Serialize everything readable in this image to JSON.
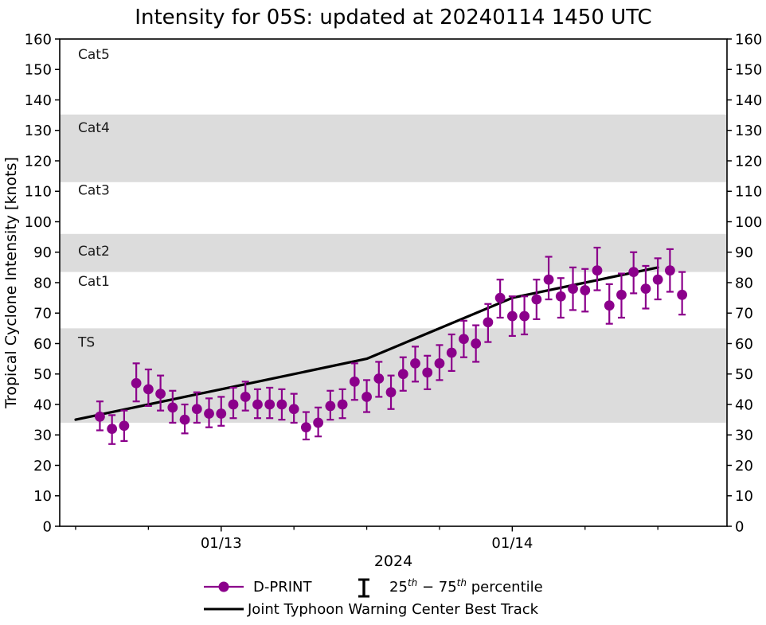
{
  "colors": {
    "dprint": "#8B008B",
    "best_track": "#000000",
    "band": "#DCDCDC",
    "text": "#000000",
    "background": "#FFFFFF"
  },
  "legend": {
    "dprint": "D-PRINT",
    "pct_25": "25",
    "pct_th1": "th",
    "pct_dash": " − 75",
    "pct_th2": "th",
    "pct_rest": " percentile",
    "best_track": "Joint Typhoon Warning Center Best Track"
  },
  "chart_data": {
    "type": "line",
    "title": "Intensity for 05S: updated at 20240114 1450 UTC",
    "xlabel": "2024",
    "ylabel": "Tropical Cyclone Intensity [knots]",
    "ylim": [
      0,
      160
    ],
    "grid": false,
    "legend_position": "below",
    "y_ticks": [
      0,
      10,
      20,
      30,
      40,
      50,
      60,
      70,
      80,
      90,
      100,
      110,
      120,
      130,
      140,
      150,
      160
    ],
    "x_axis": {
      "unit": "hours since 2024-01-12 12:00 UTC",
      "range": [
        -1.31,
        53.7
      ],
      "major_ticks": [
        {
          "t": 12,
          "label": "01/13"
        },
        {
          "t": 36,
          "label": "01/14"
        }
      ],
      "minor_ticks": [
        0,
        6,
        18,
        24,
        30,
        42,
        48
      ]
    },
    "bands": [
      {
        "label": "TS",
        "lo": 34,
        "hi": 65
      },
      {
        "label": "Cat2",
        "lo": 83.5,
        "hi": 96
      },
      {
        "label": "Cat4",
        "lo": 113,
        "hi": 135.2
      }
    ],
    "category_labels": [
      {
        "label": "Cat5",
        "v": 155
      },
      {
        "label": "Cat4",
        "v": 131
      },
      {
        "label": "Cat3",
        "v": 110.5
      },
      {
        "label": "Cat2",
        "v": 90.5
      },
      {
        "label": "Cat1",
        "v": 80.5
      },
      {
        "label": "TS",
        "v": 60.5
      }
    ],
    "series": [
      {
        "name": "D-PRINT",
        "type": "scatter_errorbar",
        "color": "#8B008B",
        "errorbar_meaning": "25th-75th percentile",
        "points_t_v_lo_hi": [
          [
            2,
            36,
            31.5,
            41
          ],
          [
            3,
            32,
            27,
            36.5
          ],
          [
            4,
            33,
            28,
            38
          ],
          [
            5,
            47,
            41,
            53.5
          ],
          [
            6,
            45,
            39.5,
            51.5
          ],
          [
            7,
            43.5,
            38,
            49.5
          ],
          [
            8,
            39,
            34,
            44.5
          ],
          [
            9,
            35,
            30.5,
            40
          ],
          [
            10,
            38.5,
            34,
            44
          ],
          [
            11,
            37,
            32.5,
            42
          ],
          [
            12,
            37,
            33,
            42.5
          ],
          [
            13,
            40,
            35.5,
            45.5
          ],
          [
            14,
            42.5,
            38,
            47.5
          ],
          [
            15,
            40,
            35.5,
            45
          ],
          [
            16,
            40,
            35.5,
            45.5
          ],
          [
            17,
            40,
            35,
            45
          ],
          [
            18,
            38.5,
            34,
            43.5
          ],
          [
            19,
            32.5,
            28.5,
            37.5
          ],
          [
            20,
            34,
            29.5,
            39
          ],
          [
            21,
            39.5,
            35,
            44.5
          ],
          [
            22,
            40,
            35.5,
            45
          ],
          [
            23,
            47.5,
            41.5,
            53.5
          ],
          [
            24,
            42.5,
            37.5,
            48
          ],
          [
            25,
            48.5,
            42.5,
            54
          ],
          [
            26,
            44,
            38.5,
            49.5
          ],
          [
            27,
            50,
            44.5,
            55.5
          ],
          [
            28,
            53.5,
            47.5,
            59
          ],
          [
            29,
            50.5,
            45,
            56
          ],
          [
            30,
            53.5,
            48,
            59.5
          ],
          [
            31,
            57,
            51,
            63
          ],
          [
            32,
            61.5,
            55.5,
            67.5
          ],
          [
            33,
            60,
            54,
            66
          ],
          [
            34,
            67,
            60.5,
            73
          ],
          [
            35,
            75,
            68.5,
            81
          ],
          [
            36,
            69,
            62.5,
            75.5
          ],
          [
            37,
            69,
            63,
            75.5
          ],
          [
            38,
            74.5,
            68,
            81
          ],
          [
            39,
            81,
            74.5,
            88.5
          ],
          [
            40,
            75.5,
            68.5,
            81.5
          ],
          [
            41,
            78,
            71,
            85
          ],
          [
            42,
            77.5,
            70.5,
            84.5
          ],
          [
            43,
            84,
            77.5,
            91.5
          ],
          [
            44,
            72.5,
            66.5,
            79.5
          ],
          [
            45,
            76,
            68.5,
            83
          ],
          [
            46,
            83.5,
            76.5,
            90
          ],
          [
            47,
            78,
            71.5,
            85.5
          ],
          [
            48,
            81,
            74.5,
            88
          ],
          [
            49,
            84,
            77,
            91
          ],
          [
            50,
            76,
            69.5,
            83.5
          ]
        ]
      },
      {
        "name": "Joint Typhoon Warning Center Best Track",
        "type": "line",
        "color": "#000000",
        "points_t_v": [
          [
            0,
            35
          ],
          [
            6,
            40
          ],
          [
            12,
            45
          ],
          [
            18,
            50
          ],
          [
            24,
            55
          ],
          [
            30,
            65
          ],
          [
            36,
            75
          ],
          [
            42,
            80
          ],
          [
            48,
            85
          ]
        ]
      }
    ]
  }
}
